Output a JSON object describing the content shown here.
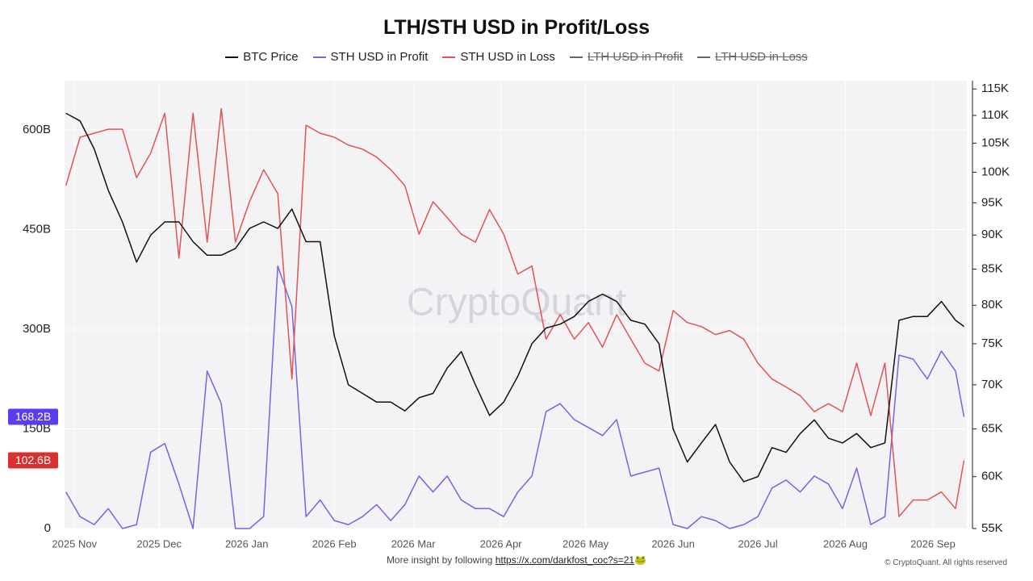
{
  "chart_data": {
    "type": "line",
    "title": "LTH/STH USD in Profit/Loss",
    "watermark": "CryptoQuant",
    "footer_text": "More insight by following",
    "footer_link": "https://x.com/darkfost_coc?s=21",
    "footer_emoji": "🐸",
    "copyright": "© CryptoQuant. All rights reserved",
    "x": [
      -3,
      2,
      7,
      12,
      17,
      22,
      27,
      32,
      37,
      42,
      47,
      52,
      57,
      62,
      67,
      72,
      77,
      82,
      87,
      92,
      97,
      102,
      107,
      112,
      117,
      122,
      127,
      132,
      137,
      142,
      147,
      152,
      157,
      162,
      167,
      172,
      177,
      182,
      187,
      192,
      197,
      202,
      207,
      212,
      217,
      222,
      227,
      232,
      237,
      242,
      247,
      252,
      257,
      262,
      267,
      272,
      277,
      282,
      287,
      292,
      297,
      302,
      307,
      312,
      315
    ],
    "xlim": [
      -3.5,
      316
    ],
    "xticks": [
      {
        "value": 0,
        "label": "2025 Nov"
      },
      {
        "value": 30,
        "label": "2025 Dec"
      },
      {
        "value": 61,
        "label": "2026 Jan"
      },
      {
        "value": 92,
        "label": "2026 Feb"
      },
      {
        "value": 120,
        "label": "2026 Mar"
      },
      {
        "value": 151,
        "label": "2026 Apr"
      },
      {
        "value": 181,
        "label": "2026 May"
      },
      {
        "value": 212,
        "label": "2026 Jun"
      },
      {
        "value": 242,
        "label": "2026 Jul"
      },
      {
        "value": 273,
        "label": "2026 Aug"
      },
      {
        "value": 304,
        "label": "2026 Sep"
      }
    ],
    "ylim": [
      0,
      674
    ],
    "yticks": [
      0,
      {
        "value": 150,
        "label": "150B"
      },
      {
        "value": 300,
        "label": "300B"
      },
      {
        "value": 450,
        "label": "450B"
      },
      {
        "value": 600,
        "label": "600B"
      }
    ],
    "y2lim": [
      55000,
      116600
    ],
    "y2_log": true,
    "y2ticks": [
      {
        "value": 55000,
        "label": "55K"
      },
      {
        "value": 60000,
        "label": "60K"
      },
      {
        "value": 65000,
        "label": "65K"
      },
      {
        "value": 70000,
        "label": "70K"
      },
      {
        "value": 75000,
        "label": "75K"
      },
      {
        "value": 80000,
        "label": "80K"
      },
      {
        "value": 85000,
        "label": "85K"
      },
      {
        "value": 90000,
        "label": "90K"
      },
      {
        "value": 95000,
        "label": "95K"
      },
      {
        "value": 100000,
        "label": "100K"
      },
      {
        "value": 105000,
        "label": "105K"
      },
      {
        "value": 110000,
        "label": "110K"
      },
      {
        "value": 115000,
        "label": "115K"
      }
    ],
    "grid": true,
    "series": [
      {
        "name": "BTC Price",
        "color": "#111111",
        "axis": "y2",
        "values": [
          110400,
          109000,
          104000,
          97000,
          92000,
          86000,
          90000,
          92000,
          92000,
          89000,
          87000,
          87000,
          88000,
          91000,
          92000,
          91000,
          94000,
          89000,
          89000,
          76000,
          70000,
          69000,
          68000,
          68000,
          67000,
          68500,
          69000,
          72000,
          74000,
          70000,
          66500,
          68000,
          71000,
          75000,
          77000,
          77500,
          78500,
          80500,
          81500,
          80500,
          78000,
          77500,
          75000,
          65000,
          61500,
          63500,
          65500,
          61500,
          59500,
          60000,
          63000,
          62500,
          64500,
          66000,
          64000,
          63500,
          64500,
          63000,
          63500,
          78000,
          78500,
          78500,
          80500,
          78000,
          77200
        ]
      },
      {
        "name": "STH USD in Profit",
        "color": "#7763e6",
        "badge_color": "#5b3cf0",
        "last_value_label": "168.2B",
        "values": [
          55,
          18,
          6,
          30,
          0,
          6,
          115,
          128,
          67,
          0,
          237,
          188,
          0,
          0,
          18,
          395,
          334,
          18,
          43,
          12,
          6,
          18,
          36,
          12,
          36,
          79,
          55,
          79,
          43,
          30,
          30,
          18,
          55,
          79,
          176,
          188,
          164,
          152,
          140,
          164,
          79,
          85,
          91,
          6,
          0,
          18,
          12,
          0,
          6,
          18,
          61,
          73,
          55,
          79,
          67,
          30,
          91,
          6,
          18,
          261,
          255,
          225,
          267,
          237,
          168.2
        ]
      },
      {
        "name": "STH USD in Loss",
        "color": "#e05555",
        "badge_color": "#d93030",
        "last_value_label": "102.6B",
        "values": [
          516,
          589,
          595,
          601,
          601,
          528,
          565,
          625,
          407,
          625,
          431,
          632,
          431,
          492,
          540,
          504,
          225,
          607,
          595,
          589,
          577,
          571,
          559,
          540,
          516,
          443,
          492,
          468,
          443,
          431,
          480,
          443,
          383,
          395,
          285,
          322,
          285,
          310,
          273,
          322,
          285,
          249,
          237,
          328,
          310,
          304,
          292,
          298,
          285,
          249,
          225,
          213,
          200,
          176,
          188,
          176,
          249,
          170,
          249,
          18,
          43,
          43,
          55,
          30,
          102.6
        ]
      }
    ],
    "legend_hidden": [
      {
        "name": "LTH USD in Profit",
        "color": "#666666"
      },
      {
        "name": "LTH USD in Loss",
        "color": "#666666"
      }
    ]
  }
}
